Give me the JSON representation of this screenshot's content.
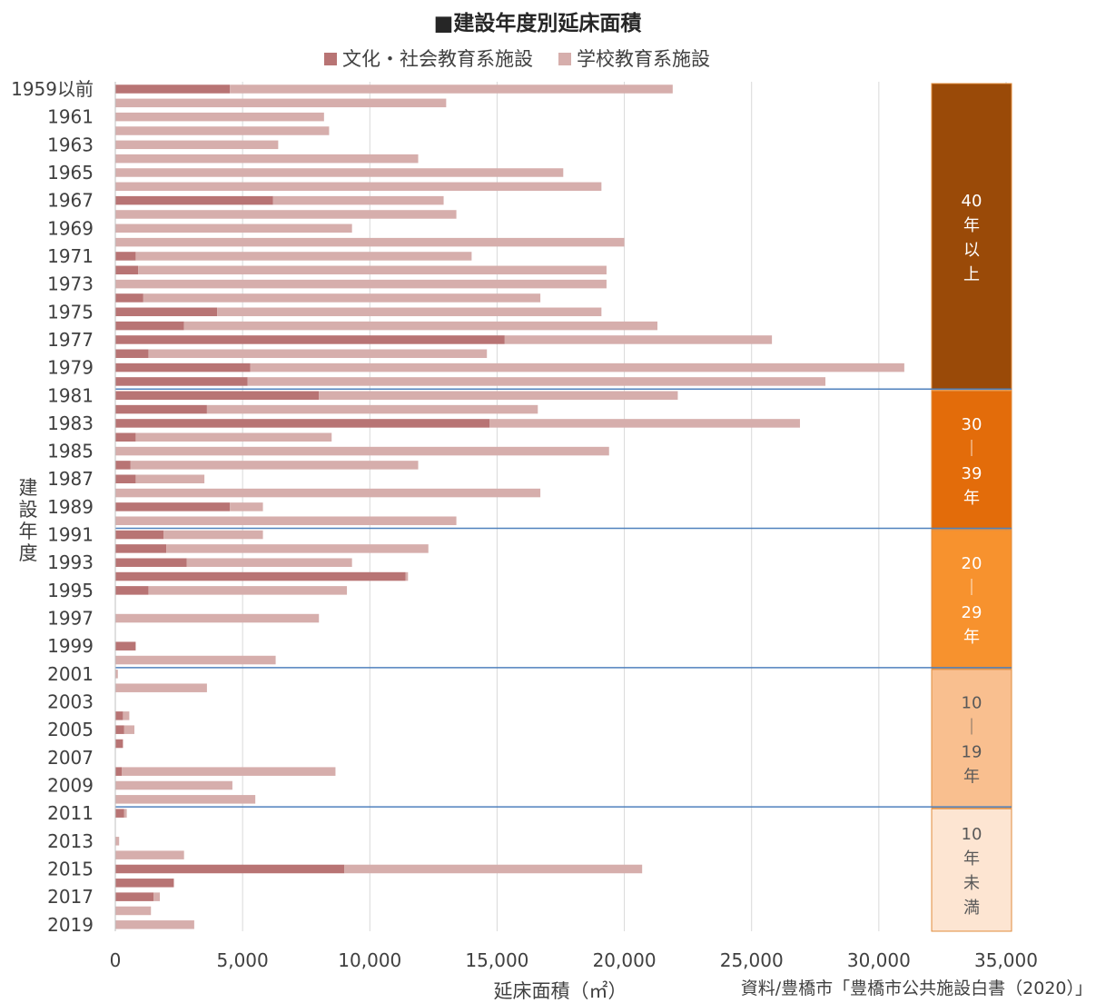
{
  "chart_data": {
    "type": "bar",
    "orientation": "horizontal",
    "stacked": true,
    "title": "■建設年度別延床面積",
    "xlabel": "延床面積（㎡）",
    "ylabel": "建設年度",
    "source": "資料/豊橋市「豊橋市公共施設白書（2020）」",
    "xlim": [
      0,
      35000
    ],
    "xticks": [
      0,
      5000,
      10000,
      15000,
      20000,
      25000,
      30000,
      35000
    ],
    "xtick_labels": [
      "0",
      "5,000",
      "10,000",
      "15,000",
      "20,000",
      "25,000",
      "30,000",
      "35,000"
    ],
    "grid": true,
    "legend_position": "top",
    "categories": [
      "1959以前",
      "1960",
      "1961",
      "1962",
      "1963",
      "1964",
      "1965",
      "1966",
      "1967",
      "1968",
      "1969",
      "1970",
      "1971",
      "1972",
      "1973",
      "1974",
      "1975",
      "1976",
      "1977",
      "1978",
      "1979",
      "1980",
      "1981",
      "1982",
      "1983",
      "1984",
      "1985",
      "1986",
      "1987",
      "1988",
      "1989",
      "1990",
      "1991",
      "1992",
      "1993",
      "1994",
      "1995",
      "1996",
      "1997",
      "1998",
      "1999",
      "2000",
      "2001",
      "2002",
      "2003",
      "2004",
      "2005",
      "2006",
      "2007",
      "2008",
      "2009",
      "2010",
      "2011",
      "2012",
      "2013",
      "2014",
      "2015",
      "2016",
      "2017",
      "2018",
      "2019"
    ],
    "ytick_labels": [
      "1959以前",
      "",
      "1961",
      "",
      "1963",
      "",
      "1965",
      "",
      "1967",
      "",
      "1969",
      "",
      "1971",
      "",
      "1973",
      "",
      "1975",
      "",
      "1977",
      "",
      "1979",
      "",
      "1981",
      "",
      "1983",
      "",
      "1985",
      "",
      "1987",
      "",
      "1989",
      "",
      "1991",
      "",
      "1993",
      "",
      "1995",
      "",
      "1997",
      "",
      "1999",
      "",
      "2001",
      "",
      "2003",
      "",
      "2005",
      "",
      "2007",
      "",
      "2009",
      "",
      "2011",
      "",
      "2013",
      "",
      "2015",
      "",
      "2017",
      "",
      "2019"
    ],
    "series": [
      {
        "name": "文化・社会教育系施設",
        "color": "#b87474",
        "values": [
          4500,
          0,
          0,
          0,
          0,
          0,
          0,
          0,
          6200,
          0,
          0,
          0,
          800,
          900,
          0,
          1100,
          4000,
          2700,
          15300,
          1300,
          5300,
          5200,
          8000,
          3600,
          14700,
          800,
          0,
          600,
          800,
          0,
          4500,
          0,
          1900,
          2000,
          2800,
          11400,
          1300,
          0,
          0,
          0,
          800,
          0,
          0,
          0,
          0,
          300,
          350,
          300,
          0,
          250,
          0,
          0,
          350,
          0,
          0,
          0,
          9000,
          2300,
          1500,
          0,
          0
        ]
      },
      {
        "name": "学校教育系施設",
        "color": "#d6aeac",
        "values": [
          17400,
          13000,
          8200,
          8400,
          6400,
          11900,
          17600,
          19100,
          6700,
          13400,
          9300,
          20000,
          13200,
          18400,
          19300,
          15600,
          15100,
          18600,
          10500,
          13300,
          25700,
          22700,
          14100,
          13000,
          12200,
          7700,
          19400,
          11300,
          2700,
          16700,
          1300,
          13400,
          3900,
          10300,
          6500,
          100,
          7800,
          0,
          8000,
          0,
          0,
          6300,
          100,
          3600,
          0,
          250,
          400,
          0,
          0,
          8400,
          4600,
          5500,
          100,
          0,
          150,
          2700,
          11700,
          0,
          250,
          1400,
          3100
        ]
      }
    ],
    "age_bands": [
      {
        "label": "40年以上",
        "from": "1959以前",
        "to": "1980",
        "color": "#9a4a08"
      },
      {
        "label": "30｜39年",
        "from": "1981",
        "to": "1990",
        "color": "#e36c0a"
      },
      {
        "label": "20｜29年",
        "from": "1991",
        "to": "2000",
        "color": "#f7922e"
      },
      {
        "label": "10｜19年",
        "from": "2001",
        "to": "2010",
        "color": "#f9bf8f"
      },
      {
        "label": "10年未満",
        "from": "2011",
        "to": "2019",
        "color": "#fde5d2"
      }
    ],
    "band_divider_color": "#4f81bd"
  }
}
